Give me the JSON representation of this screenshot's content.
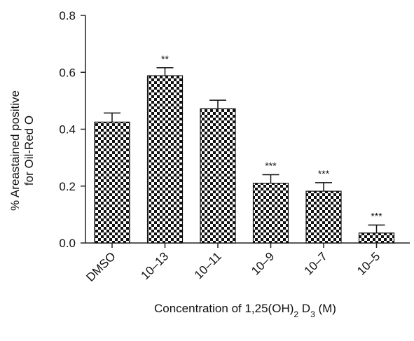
{
  "chart_data": {
    "type": "bar",
    "title": "",
    "categories": [
      "DMSO",
      "10–13",
      "10–11",
      "10–9",
      "10–7",
      "10–5"
    ],
    "values": [
      0.425,
      0.588,
      0.472,
      0.21,
      0.182,
      0.035
    ],
    "errors": [
      0.032,
      0.028,
      0.03,
      0.03,
      0.03,
      0.028
    ],
    "significance": [
      "",
      "**",
      "",
      "***",
      "***",
      "***"
    ],
    "ylim": [
      0,
      0.8
    ],
    "yticks": [
      0.0,
      0.2,
      0.4,
      0.6,
      0.8
    ],
    "ytick_labels": [
      "0.0",
      "0.2",
      "0.4",
      "0.6",
      "0.8"
    ],
    "ylabel_line1": "% Areastained positive",
    "ylabel_line2": "for Oil-Red O",
    "xlabel": {
      "prefix": "Concentration of 1,25(OH)",
      "sub1": "2",
      "mid": " D",
      "sub2": "3",
      "suffix": " (M)"
    },
    "grid": false,
    "legend": "none",
    "bar_pattern": "checkerboard",
    "colors": {
      "bar_dark": "#111111",
      "bar_light": "#ffffff",
      "axis": "#222222"
    }
  }
}
